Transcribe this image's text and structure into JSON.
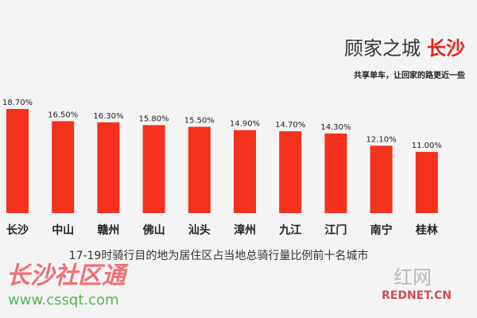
{
  "chart_data": {
    "type": "bar",
    "title": "顾家之城",
    "title_highlight": "长沙",
    "subtitle": "共享单车，让回家的路更近一些",
    "caption": "17-19时骑行目的地为居住区占当地总骑行量比例前十名城市",
    "categories": [
      "长沙",
      "中山",
      "赣州",
      "佛山",
      "汕头",
      "漳州",
      "九江",
      "江门",
      "南宁",
      "桂林"
    ],
    "values": [
      18.7,
      16.5,
      16.3,
      15.8,
      15.5,
      14.9,
      14.7,
      14.3,
      12.1,
      11.0
    ],
    "value_labels": [
      "18.70%",
      "16.50%",
      "16.30%",
      "15.80%",
      "15.50%",
      "14.90%",
      "14.70%",
      "14.30%",
      "12.10%",
      "11.00%"
    ],
    "color": "#f3311c",
    "highlight_color": "#e8231b"
  },
  "watermarks": {
    "site_name": "长沙社区通",
    "site_url": "www.cssqt.com",
    "logo_text": "红网",
    "logo_url": "REDNET.CN"
  }
}
